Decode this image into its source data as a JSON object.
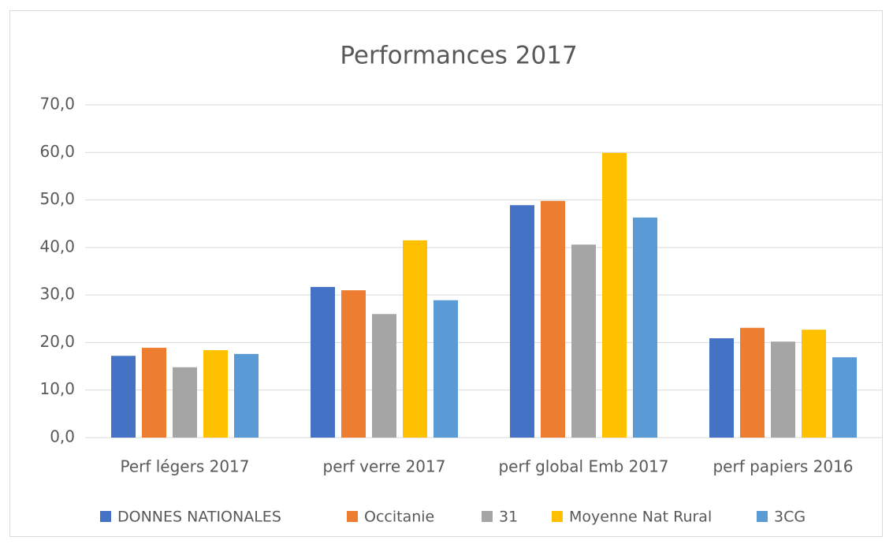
{
  "chart_data": {
    "type": "bar",
    "title": "Performances  2017",
    "categories": [
      "Perf légers 2017",
      "perf verre 2017",
      "perf global Emb 2017",
      "perf papiers 2016"
    ],
    "series": [
      {
        "name": "DONNES NATIONALES",
        "color": "#4472c4",
        "values": [
          17.2,
          31.7,
          48.9,
          20.9
        ]
      },
      {
        "name": "Occitanie",
        "color": "#ed7d31",
        "values": [
          18.9,
          31.0,
          49.8,
          23.1
        ]
      },
      {
        "name": "31",
        "color": "#a5a5a5",
        "values": [
          14.8,
          26.0,
          40.6,
          20.2
        ]
      },
      {
        "name": "Moyenne Nat Rural",
        "color": "#ffc000",
        "values": [
          18.4,
          41.5,
          59.9,
          22.7
        ]
      },
      {
        "name": "3CG",
        "color": "#5b9bd5",
        "values": [
          17.6,
          28.9,
          46.3,
          16.9
        ]
      }
    ],
    "ylim": [
      0,
      70
    ],
    "yticks": [
      {
        "value": 0,
        "label": "0,0"
      },
      {
        "value": 10,
        "label": "10,0"
      },
      {
        "value": 20,
        "label": "20,0"
      },
      {
        "value": 30,
        "label": "30,0"
      },
      {
        "value": 40,
        "label": "40,0"
      },
      {
        "value": 50,
        "label": "50,0"
      },
      {
        "value": 60,
        "label": "60,0"
      },
      {
        "value": 70,
        "label": "70,0"
      }
    ],
    "grid": true,
    "legend": "bottom"
  }
}
